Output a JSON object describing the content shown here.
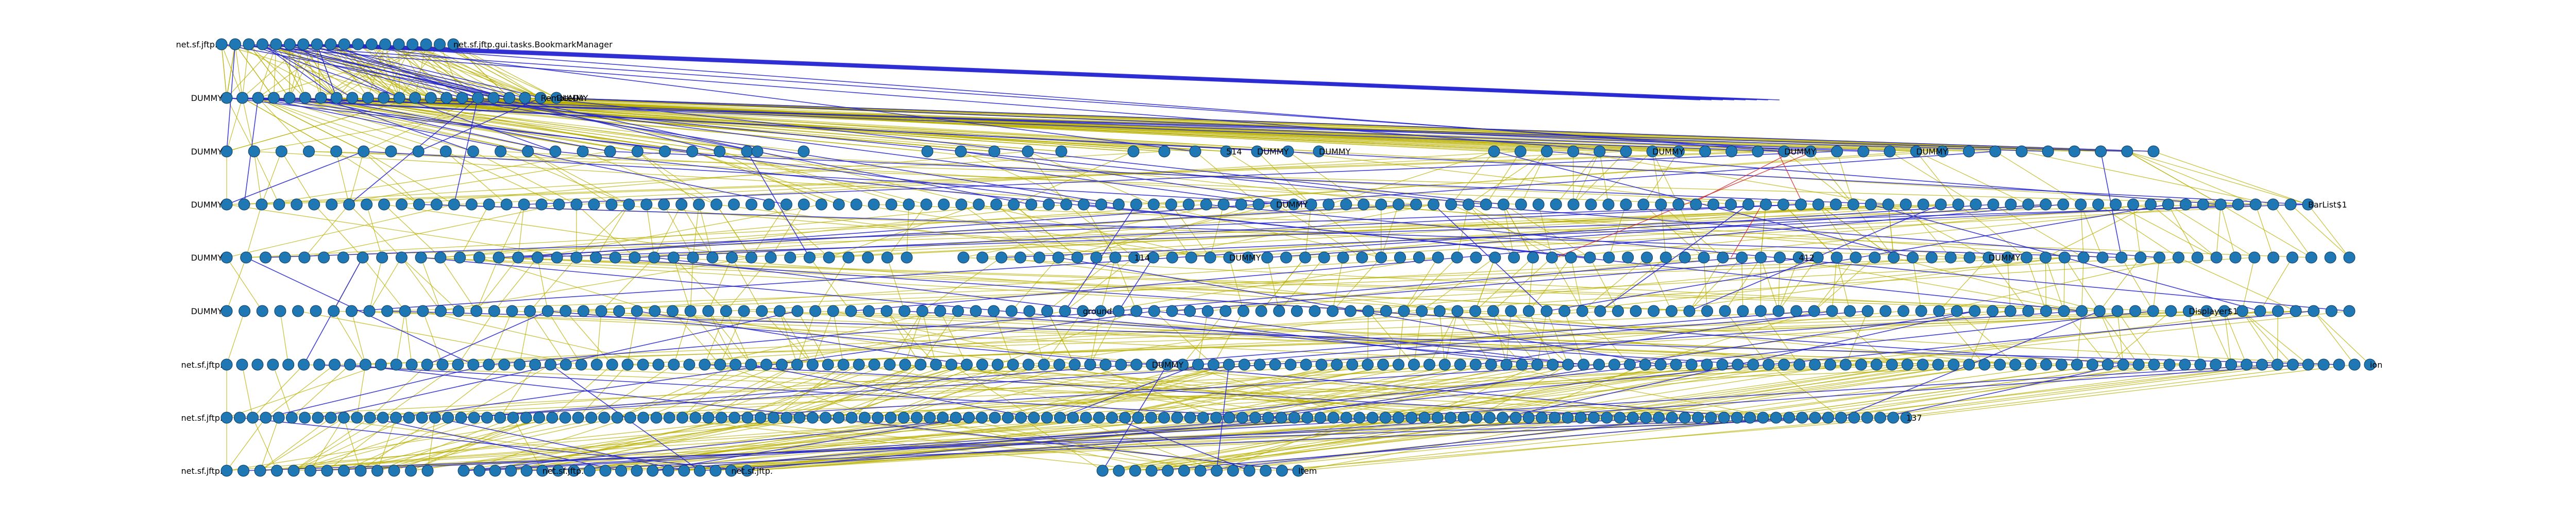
{
  "colors": {
    "node_fill": "#1f78b4",
    "edge_dependency": "#b8b000",
    "edge_call": "#2020d0",
    "edge_highlight": "#d02020",
    "background": "#ffffff"
  },
  "layers": [
    {
      "id": "layer-0",
      "node_count": 18,
      "labels": [
        {
          "text": "net.sf.jftp.",
          "slot": 0
        },
        {
          "text": "net.sf.jftp.gui.tasks.BookmarkManager",
          "slot": 17
        }
      ]
    },
    {
      "id": "layer-1",
      "node_count": 22,
      "labels": [
        {
          "text": "DUMMY",
          "slot": 0
        },
        {
          "text": "RemoteDir",
          "slot": 20
        },
        {
          "text": "DUMMY",
          "slot": 21
        }
      ]
    },
    {
      "id": "layer-2",
      "node_count": 60,
      "labels": [
        {
          "text": "DUMMY",
          "slot": 0
        },
        {
          "text": "514",
          "slot": 30
        },
        {
          "text": "DUMMY",
          "slot": 31
        },
        {
          "text": "DUMMY",
          "slot": 33
        },
        {
          "text": "DUMMY",
          "slot": 40
        },
        {
          "text": "DUMMY",
          "slot": 45
        },
        {
          "text": "DUMMY",
          "slot": 50
        }
      ]
    },
    {
      "id": "layer-3",
      "node_count": 120,
      "labels": [
        {
          "text": "DUMMY",
          "slot": 0
        },
        {
          "text": "DUMMY",
          "slot": 60
        },
        {
          "text": "BarList$1",
          "slot": 119
        }
      ]
    },
    {
      "id": "layer-4",
      "node_count": 110,
      "labels": [
        {
          "text": "DUMMY",
          "slot": 0
        },
        {
          "text": "114",
          "slot": 45
        },
        {
          "text": "DUMMY",
          "slot": 50
        },
        {
          "text": "412",
          "slot": 80
        },
        {
          "text": "DUMMY",
          "slot": 90
        }
      ]
    },
    {
      "id": "layer-5",
      "node_count": 120,
      "labels": [
        {
          "text": "DUMMY",
          "slot": 0
        },
        {
          "text": "ground",
          "slot": 48
        },
        {
          "text": "Displayer$1",
          "slot": 110
        }
      ]
    },
    {
      "id": "layer-6",
      "node_count": 140,
      "labels": [
        {
          "text": "net.sf.jftp.",
          "slot": 0
        },
        {
          "text": "DUMMY",
          "slot": 60
        },
        {
          "text": "ion",
          "slot": 139
        }
      ]
    },
    {
      "id": "layer-7",
      "node_count": 130,
      "labels": [
        {
          "text": "net.sf.jftp.",
          "slot": 0
        },
        {
          "text": "137",
          "slot": 129
        }
      ]
    },
    {
      "id": "layer-8",
      "node_count": 45,
      "labels": [
        {
          "text": "net.sf.jftp.",
          "slot": 0
        },
        {
          "text": "net.sf.jftp.",
          "slot": 18
        },
        {
          "text": "net.sf.jftp.",
          "slot": 30
        },
        {
          "text": "ltem",
          "slot": 44
        }
      ]
    }
  ],
  "edge_counts": {
    "dependency": 900,
    "call": 120,
    "highlight": 4
  }
}
